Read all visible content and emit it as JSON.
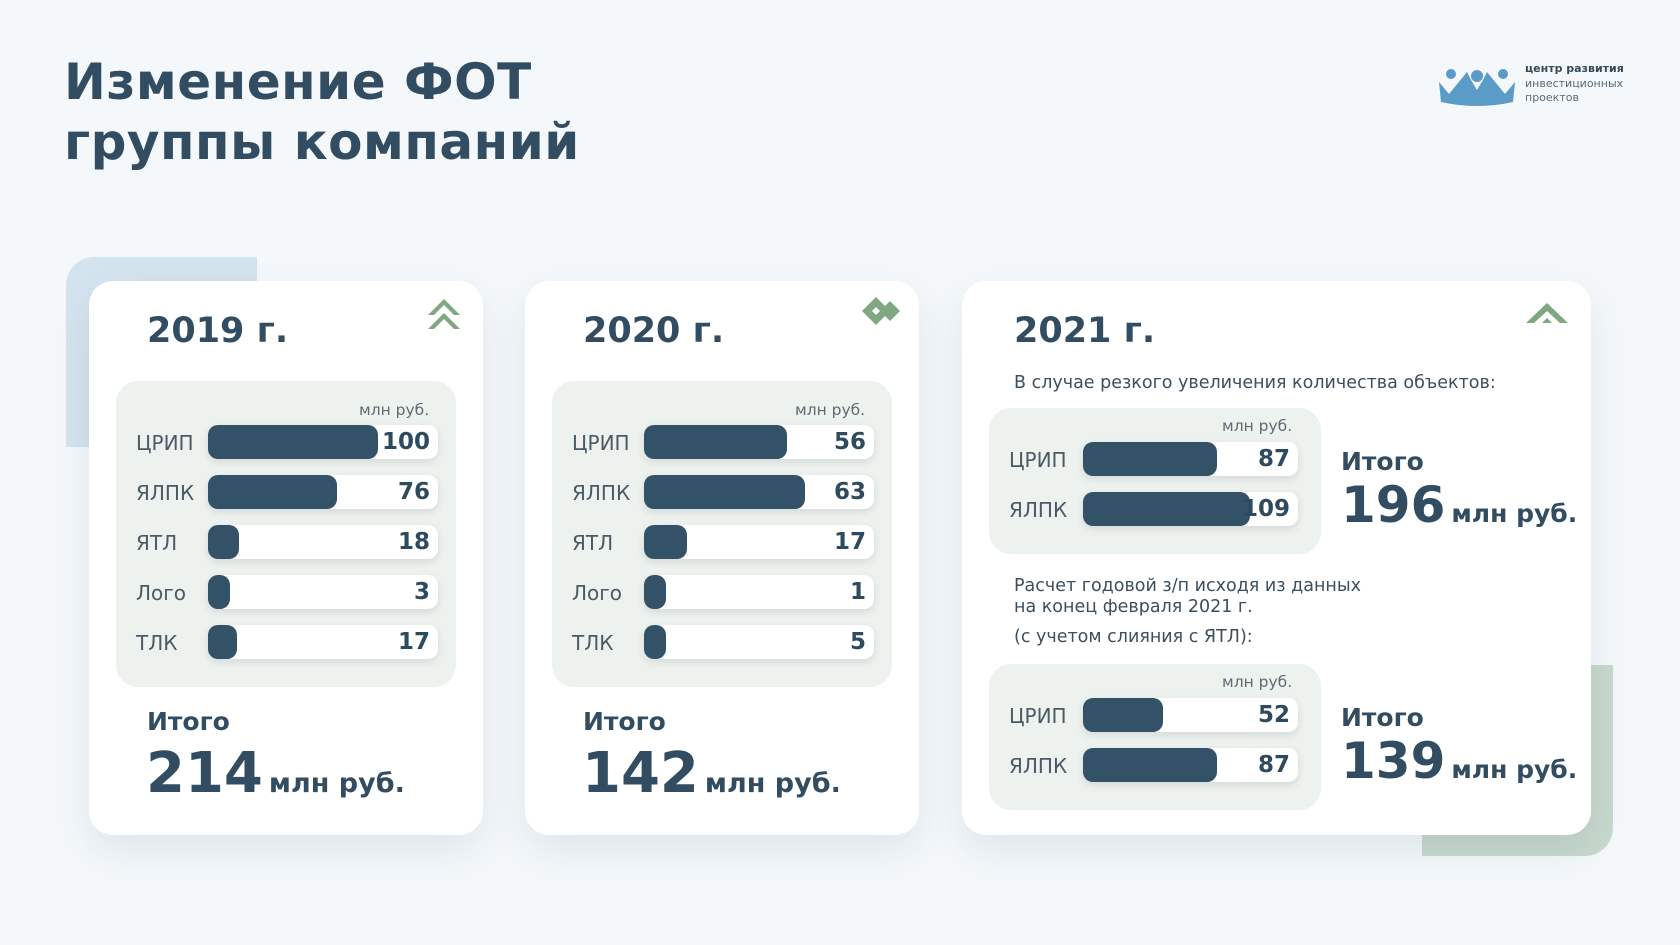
{
  "header": {
    "title_line1": "Изменение ФОТ",
    "title_line2": "группы компаний"
  },
  "logo": {
    "icon": "people-logo-icon",
    "line1": "центр развития",
    "line2": "инвестиционных",
    "line3": "проектов",
    "color": "#5b9bc8"
  },
  "colors": {
    "bar": "#335268",
    "accent_green": "#7fa882",
    "deco_blue": "#d4e4ef",
    "deco_green": "#c8d9cd"
  },
  "unit_label": "млн руб.",
  "total_label": "Итого",
  "chart_data": [
    {
      "type": "bar",
      "orientation": "horizontal",
      "title": "2019 г.",
      "unit": "млн руб.",
      "categories": [
        "ЦРИП",
        "ЯЛПК",
        "ЯТЛ",
        "Лого",
        "ТЛК"
      ],
      "values": [
        100,
        76,
        18,
        3,
        17
      ],
      "xlim": [
        0,
        135
      ],
      "total": "214",
      "total_unit": "млн руб."
    },
    {
      "type": "bar",
      "orientation": "horizontal",
      "title": "2020 г.",
      "unit": "млн руб.",
      "categories": [
        "ЦРИП",
        "ЯЛПК",
        "ЯТЛ",
        "Лого",
        "ТЛК"
      ],
      "values": [
        56,
        63,
        17,
        1,
        5
      ],
      "xlim": [
        0,
        90
      ],
      "total": "142",
      "total_unit": "млн руб."
    },
    {
      "type": "bar",
      "orientation": "horizontal",
      "title": "2021 г.",
      "note": "В случае резкого увеличения количества объектов:",
      "unit": "млн руб.",
      "categories": [
        "ЦРИП",
        "ЯЛПК"
      ],
      "values": [
        87,
        109
      ],
      "xlim": [
        0,
        140
      ],
      "total": "196",
      "total_unit": "млн руб."
    },
    {
      "type": "bar",
      "orientation": "horizontal",
      "note_line1": "Расчет годовой з/п исходя из данных",
      "note_line2": "на конец февраля 2021 г.",
      "note_line3": "(с учетом слияния с ЯТЛ):",
      "unit": "млн руб.",
      "categories": [
        "ЦРИП",
        "ЯЛПК"
      ],
      "values": [
        52,
        87
      ],
      "xlim": [
        0,
        140
      ],
      "total": "139",
      "total_unit": "млн руб."
    }
  ]
}
